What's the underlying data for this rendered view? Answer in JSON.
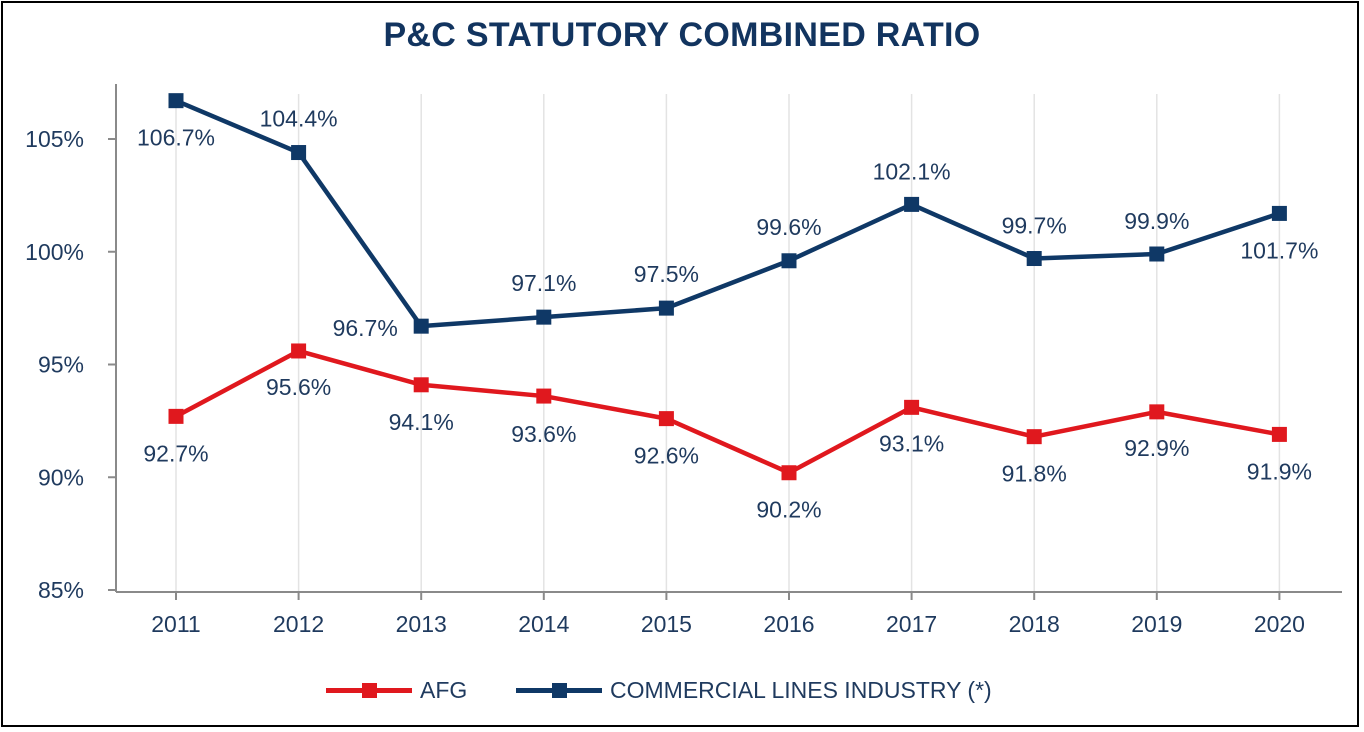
{
  "chart_data": {
    "type": "line",
    "title": "P&C STATUTORY COMBINED RATIO",
    "categories": [
      "2011",
      "2012",
      "2013",
      "2014",
      "2015",
      "2016",
      "2017",
      "2018",
      "2019",
      "2020"
    ],
    "series": [
      {
        "name": "AFG",
        "color": "#e0181e",
        "values": [
          92.7,
          95.6,
          94.1,
          93.6,
          92.6,
          90.2,
          93.1,
          91.8,
          92.9,
          91.9
        ],
        "labels": [
          "92.7%",
          "95.6%",
          "94.1%",
          "93.6%",
          "92.6%",
          "90.2%",
          "93.1%",
          "91.8%",
          "92.9%",
          "91.9%"
        ]
      },
      {
        "name": "COMMERCIAL LINES INDUSTRY (*)",
        "color": "#0f3866",
        "values": [
          106.7,
          104.4,
          96.7,
          97.1,
          97.5,
          99.6,
          102.1,
          99.7,
          99.9,
          101.7
        ],
        "labels": [
          "106.7%",
          "104.4%",
          "96.7%",
          "97.1%",
          "97.5%",
          "99.6%",
          "102.1%",
          "99.7%",
          "99.9%",
          "101.7%"
        ]
      }
    ],
    "ylim": [
      85,
      107
    ],
    "yticks": [
      85,
      90,
      95,
      100,
      105
    ],
    "ytick_labels": [
      "85%",
      "90%",
      "95%",
      "100%",
      "105%"
    ],
    "xlabel": "",
    "ylabel": "",
    "grid": "vertical",
    "legend": "bottom-center"
  },
  "colors": {
    "title": "#12345f",
    "axis_text": "#1f3a5e",
    "gridline": "#e3e3e3",
    "axis": "#8a8a8a"
  }
}
